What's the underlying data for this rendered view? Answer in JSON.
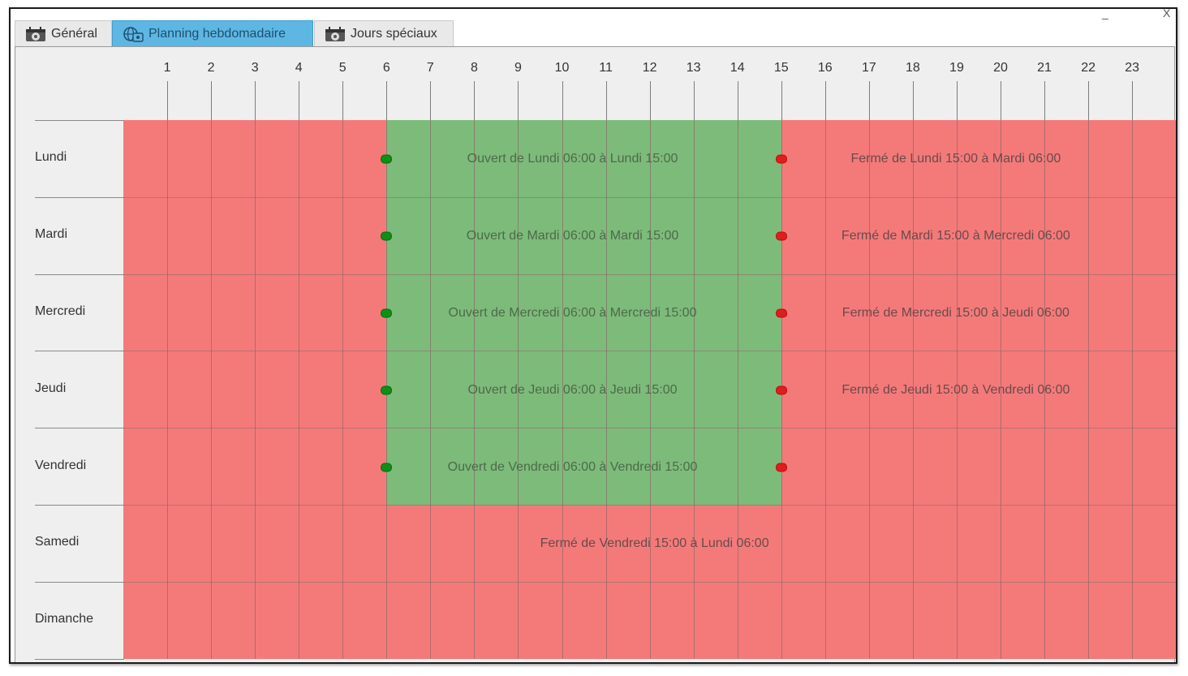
{
  "window_controls": {
    "minimize": "_",
    "close": "X"
  },
  "tabs": [
    {
      "label": "Général",
      "icon": "calendar-gear-icon",
      "active": false
    },
    {
      "label": "Planning hebdomadaire",
      "icon": "globe-calendar-icon",
      "active": true
    },
    {
      "label": "Jours spéciaux",
      "icon": "calendar-gear-icon",
      "active": false
    }
  ],
  "hours": [
    "1",
    "2",
    "3",
    "4",
    "5",
    "6",
    "7",
    "8",
    "9",
    "10",
    "11",
    "12",
    "13",
    "14",
    "15",
    "16",
    "17",
    "18",
    "19",
    "20",
    "21",
    "22",
    "23"
  ],
  "days": [
    "Lundi",
    "Mardi",
    "Mercredi",
    "Jeudi",
    "Vendredi",
    "Samedi",
    "Dimanche"
  ],
  "colors": {
    "open": "#7dbb7a",
    "closed": "#f47a7a",
    "open_dot": "#0f8f16",
    "closed_dot": "#e01c1c",
    "active_tab": "#5eb7e3"
  },
  "segments": [
    {
      "day": 0,
      "state": "open",
      "from": 6,
      "to": 15,
      "label": "Ouvert de Lundi 06:00 à Lundi 15:00"
    },
    {
      "day": 0,
      "state": "closed",
      "from": 15,
      "to": 24,
      "label": "Fermé de Lundi 15:00 à Mardi 06:00"
    },
    {
      "day": 1,
      "state": "open",
      "from": 6,
      "to": 15,
      "label": "Ouvert de Mardi 06:00 à Mardi 15:00"
    },
    {
      "day": 1,
      "state": "closed",
      "from": 15,
      "to": 24,
      "label": "Fermé de Mardi 15:00 à Mercredi 06:00"
    },
    {
      "day": 2,
      "state": "open",
      "from": 6,
      "to": 15,
      "label": "Ouvert de Mercredi 06:00 à Mercredi 15:00"
    },
    {
      "day": 2,
      "state": "closed",
      "from": 15,
      "to": 24,
      "label": "Fermé de Mercredi 15:00 à Jeudi 06:00"
    },
    {
      "day": 3,
      "state": "open",
      "from": 6,
      "to": 15,
      "label": "Ouvert de Jeudi 06:00 à Jeudi 15:00"
    },
    {
      "day": 3,
      "state": "closed",
      "from": 15,
      "to": 24,
      "label": "Fermé de Jeudi 15:00 à Vendredi 06:00"
    },
    {
      "day": 4,
      "state": "open",
      "from": 6,
      "to": 15,
      "label": "Ouvert de Vendredi 06:00 à Vendredi 15:00"
    },
    {
      "day": 5,
      "state": "closed",
      "from": 0,
      "to": 24,
      "label": "Fermé de Vendredi 15:00 à Lundi 06:00"
    }
  ]
}
